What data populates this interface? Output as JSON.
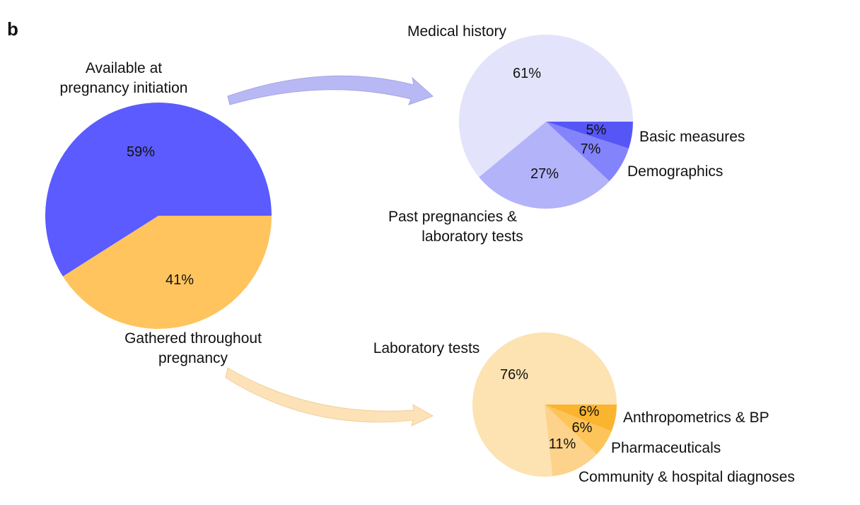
{
  "panel_label": "b",
  "chart_data": [
    {
      "type": "pie",
      "slices": [
        {
          "label": "Available at pregnancy initiation",
          "label_lines": [
            "Available at",
            "pregnancy initiation"
          ],
          "value": 59,
          "value_label": "59%",
          "color": "#5b5bff"
        },
        {
          "label": "Gathered throughout pregnancy",
          "label_lines": [
            "Gathered throughout",
            "pregnancy"
          ],
          "value": 41,
          "value_label": "41%",
          "color": "#ffc45e"
        }
      ]
    },
    {
      "type": "pie",
      "slices": [
        {
          "label": "Medical history",
          "label_lines": [
            "Medical history"
          ],
          "value": 61,
          "value_label": "61%",
          "color": "#e3e3fb"
        },
        {
          "label": "Past pregnancies & laboratory tests",
          "label_lines": [
            "Past pregnancies &",
            "laboratory tests"
          ],
          "value": 27,
          "value_label": "27%",
          "color": "#b3b3fa"
        },
        {
          "label": "Demographics",
          "label_lines": [
            "Demographics"
          ],
          "value": 7,
          "value_label": "7%",
          "color": "#8383fb"
        },
        {
          "label": "Basic measures",
          "label_lines": [
            "Basic measures"
          ],
          "value": 5,
          "value_label": "5%",
          "color": "#5656f7"
        }
      ]
    },
    {
      "type": "pie",
      "slices": [
        {
          "label": "Laboratory tests",
          "label_lines": [
            "Laboratory tests"
          ],
          "value": 76,
          "value_label": "76%",
          "color": "#fde2b2"
        },
        {
          "label": "Community & hospital diagnoses",
          "label_lines": [
            "Community & hospital diagnoses"
          ],
          "value": 11,
          "value_label": "11%",
          "color": "#fdd28a"
        },
        {
          "label": "Pharmaceuticals",
          "label_lines": [
            "Pharmaceuticals"
          ],
          "value": 6,
          "value_label": "6%",
          "color": "#fdc45a"
        },
        {
          "label": "Anthropometrics & BP",
          "label_lines": [
            "Anthropometrics & BP"
          ],
          "value": 6,
          "value_label": "6%",
          "color": "#fbb42e"
        }
      ]
    }
  ],
  "arrows": [
    {
      "from": "Available at pregnancy initiation",
      "to": "Medical history pie",
      "color": "#b8b8f4"
    },
    {
      "from": "Gathered throughout pregnancy",
      "to": "Laboratory tests pie",
      "color": "#fde2b8"
    }
  ]
}
